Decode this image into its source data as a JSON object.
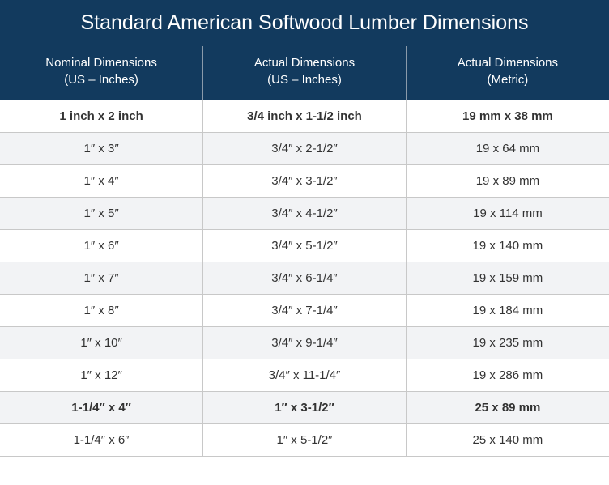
{
  "table": {
    "title": "Standard American Softwood Lumber Dimensions",
    "title_bg_color": "#123a5e",
    "title_font_color": "#ffffff",
    "title_fontsize": 25,
    "header_bg_color": "#123a5e",
    "header_font_color": "#ffffff",
    "header_fontsize": 15,
    "body_fontsize": 15,
    "body_font_color": "#333333",
    "border_color": "#c8c8c8",
    "alt_row_bg": "#f2f3f5",
    "columns": [
      {
        "line1": "Nominal Dimensions",
        "line2": "(US – Inches)"
      },
      {
        "line1": "Actual Dimensions",
        "line2": "(US – Inches)"
      },
      {
        "line1": "Actual Dimensions",
        "line2": "(Metric)"
      }
    ],
    "rows": [
      {
        "bold": true,
        "cells": [
          "1 inch x 2 inch",
          "3/4 inch x 1-1/2 inch",
          "19 mm x 38 mm"
        ]
      },
      {
        "bold": false,
        "cells": [
          "1″ x 3″",
          "3/4″ x 2-1/2″",
          "19 x 64 mm"
        ]
      },
      {
        "bold": false,
        "cells": [
          "1″ x 4″",
          "3/4″ x 3-1/2″",
          "19 x 89 mm"
        ]
      },
      {
        "bold": false,
        "cells": [
          "1″ x 5″",
          "3/4″ x 4-1/2″",
          "19 x 114 mm"
        ]
      },
      {
        "bold": false,
        "cells": [
          "1″ x 6″",
          "3/4″ x 5-1/2″",
          "19 x 140 mm"
        ]
      },
      {
        "bold": false,
        "cells": [
          "1″ x 7″",
          "3/4″ x 6-1/4″",
          "19 x 159 mm"
        ]
      },
      {
        "bold": false,
        "cells": [
          "1″ x 8″",
          "3/4″ x 7-1/4″",
          "19 x 184 mm"
        ]
      },
      {
        "bold": false,
        "cells": [
          "1″ x 10″",
          "3/4″ x 9-1/4″",
          "19 x 235 mm"
        ]
      },
      {
        "bold": false,
        "cells": [
          "1″ x 12″",
          "3/4″ x 11-1/4″",
          "19 x 286 mm"
        ]
      },
      {
        "bold": true,
        "cells": [
          "1-1/4″ x 4″",
          "1″ x 3-1/2″",
          "25 x 89 mm"
        ]
      },
      {
        "bold": false,
        "cells": [
          "1-1/4″ x 6″",
          "1″ x 5-1/2″",
          "25 x 140 mm"
        ]
      }
    ]
  }
}
